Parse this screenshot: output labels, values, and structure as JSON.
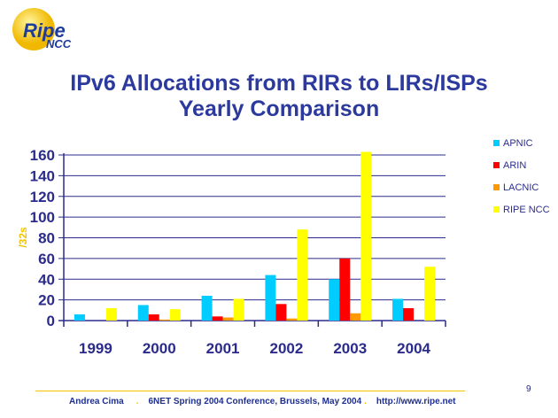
{
  "logo": {
    "text": "Ripe NCC"
  },
  "title": {
    "line1": "IPv6 Allocations from RIRs to LIRs/ISPs",
    "line2": "Yearly Comparison"
  },
  "chart_data": {
    "type": "bar",
    "title": "IPv6 Allocations from RIRs to LIRs/ISPs Yearly Comparison",
    "xlabel": "",
    "ylabel": "/32s",
    "ylim": [
      0,
      160
    ],
    "yticks": [
      0,
      20,
      40,
      60,
      80,
      100,
      120,
      140,
      160
    ],
    "categories": [
      "1999",
      "2000",
      "2001",
      "2002",
      "2003",
      "2004"
    ],
    "legend_position": "right",
    "grid": true,
    "series": [
      {
        "name": "APNIC",
        "color": "#00ccff",
        "values": [
          6,
          15,
          24,
          44,
          40,
          21
        ]
      },
      {
        "name": "ARIN",
        "color": "#ff0000",
        "values": [
          0,
          6,
          4,
          16,
          60,
          12
        ]
      },
      {
        "name": "LACNIC",
        "color": "#ff9900",
        "values": [
          0,
          1,
          3,
          2,
          7,
          0
        ]
      },
      {
        "name": "RIPE NCC",
        "color": "#ffff00",
        "values": [
          12,
          11,
          21,
          88,
          163,
          52
        ]
      }
    ]
  },
  "footer": {
    "author": "Andrea Cima",
    "event": "6NET Spring 2004 Conference, Brussels, May 2004",
    "url": "http://www.ripe.net",
    "page": "9"
  }
}
